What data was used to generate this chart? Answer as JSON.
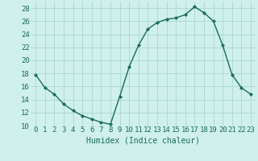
{
  "x": [
    0,
    1,
    2,
    3,
    4,
    5,
    6,
    7,
    8,
    9,
    10,
    11,
    12,
    13,
    14,
    15,
    16,
    17,
    18,
    19,
    20,
    21,
    22,
    23
  ],
  "y": [
    17.8,
    15.8,
    14.8,
    13.3,
    12.3,
    11.5,
    11.0,
    10.5,
    10.2,
    14.5,
    19.0,
    22.3,
    24.8,
    25.8,
    26.3,
    26.5,
    27.0,
    28.2,
    27.3,
    26.0,
    22.3,
    17.8,
    15.8,
    14.8
  ],
  "line_color": "#1a6b5e",
  "marker": "D",
  "marker_size": 2.0,
  "bg_color": "#cff0eb",
  "grid_color": "#aad8d0",
  "xlabel": "Humidex (Indice chaleur)",
  "xlim": [
    -0.5,
    23.5
  ],
  "ylim": [
    10,
    29
  ],
  "yticks": [
    10,
    12,
    14,
    16,
    18,
    20,
    22,
    24,
    26,
    28
  ],
  "xticks": [
    0,
    1,
    2,
    3,
    4,
    5,
    6,
    7,
    8,
    9,
    10,
    11,
    12,
    13,
    14,
    15,
    16,
    17,
    18,
    19,
    20,
    21,
    22,
    23
  ],
  "xlabel_fontsize": 7,
  "tick_fontsize": 6.5,
  "linewidth": 1.0
}
